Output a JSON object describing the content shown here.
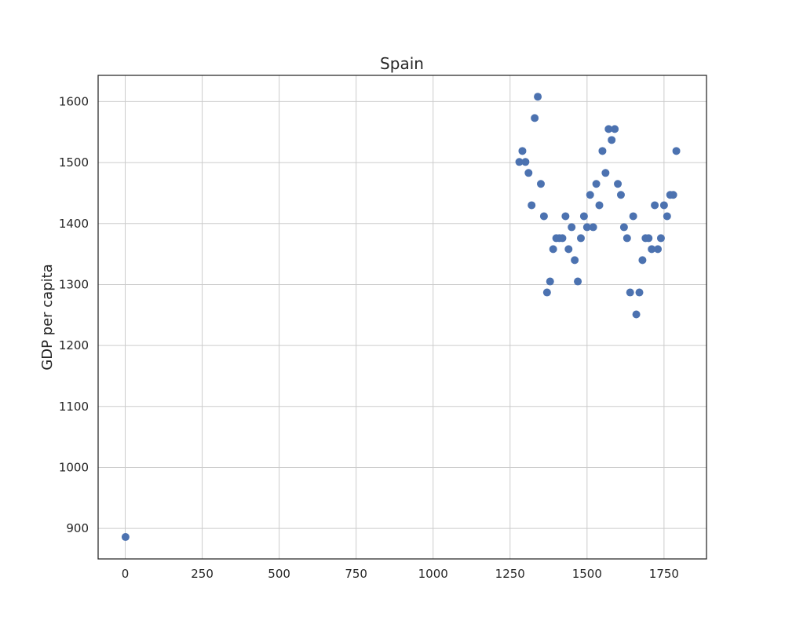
{
  "chart_data": {
    "type": "scatter",
    "title": "Spain",
    "xlabel": "",
    "ylabel": "GDP per capita",
    "xlim": [
      -88,
      1888
    ],
    "ylim": [
      850,
      1643
    ],
    "x_ticks": [
      0,
      250,
      500,
      750,
      1000,
      1250,
      1500,
      1750
    ],
    "y_ticks": [
      900,
      1000,
      1100,
      1200,
      1300,
      1400,
      1500,
      1600
    ],
    "grid": true,
    "marker_color": "#4c72b0",
    "series": [
      {
        "points": [
          [
            1,
            886
          ],
          [
            1280,
            1501
          ],
          [
            1290,
            1519
          ],
          [
            1300,
            1501
          ],
          [
            1310,
            1483
          ],
          [
            1320,
            1430
          ],
          [
            1330,
            1573
          ],
          [
            1340,
            1608
          ],
          [
            1350,
            1465
          ],
          [
            1360,
            1412
          ],
          [
            1370,
            1287
          ],
          [
            1380,
            1305
          ],
          [
            1390,
            1358
          ],
          [
            1400,
            1376
          ],
          [
            1410,
            1376
          ],
          [
            1420,
            1376
          ],
          [
            1430,
            1412
          ],
          [
            1440,
            1358
          ],
          [
            1450,
            1394
          ],
          [
            1460,
            1340
          ],
          [
            1470,
            1305
          ],
          [
            1480,
            1376
          ],
          [
            1490,
            1412
          ],
          [
            1500,
            1394
          ],
          [
            1510,
            1447
          ],
          [
            1520,
            1394
          ],
          [
            1530,
            1465
          ],
          [
            1540,
            1430
          ],
          [
            1550,
            1519
          ],
          [
            1560,
            1483
          ],
          [
            1570,
            1555
          ],
          [
            1580,
            1537
          ],
          [
            1590,
            1555
          ],
          [
            1600,
            1465
          ],
          [
            1610,
            1447
          ],
          [
            1620,
            1394
          ],
          [
            1630,
            1376
          ],
          [
            1640,
            1287
          ],
          [
            1650,
            1412
          ],
          [
            1660,
            1251
          ],
          [
            1670,
            1287
          ],
          [
            1680,
            1340
          ],
          [
            1690,
            1376
          ],
          [
            1700,
            1376
          ],
          [
            1710,
            1358
          ],
          [
            1720,
            1430
          ],
          [
            1730,
            1358
          ],
          [
            1740,
            1376
          ],
          [
            1750,
            1430
          ],
          [
            1760,
            1412
          ],
          [
            1770,
            1447
          ],
          [
            1780,
            1447
          ],
          [
            1790,
            1519
          ]
        ]
      }
    ]
  }
}
